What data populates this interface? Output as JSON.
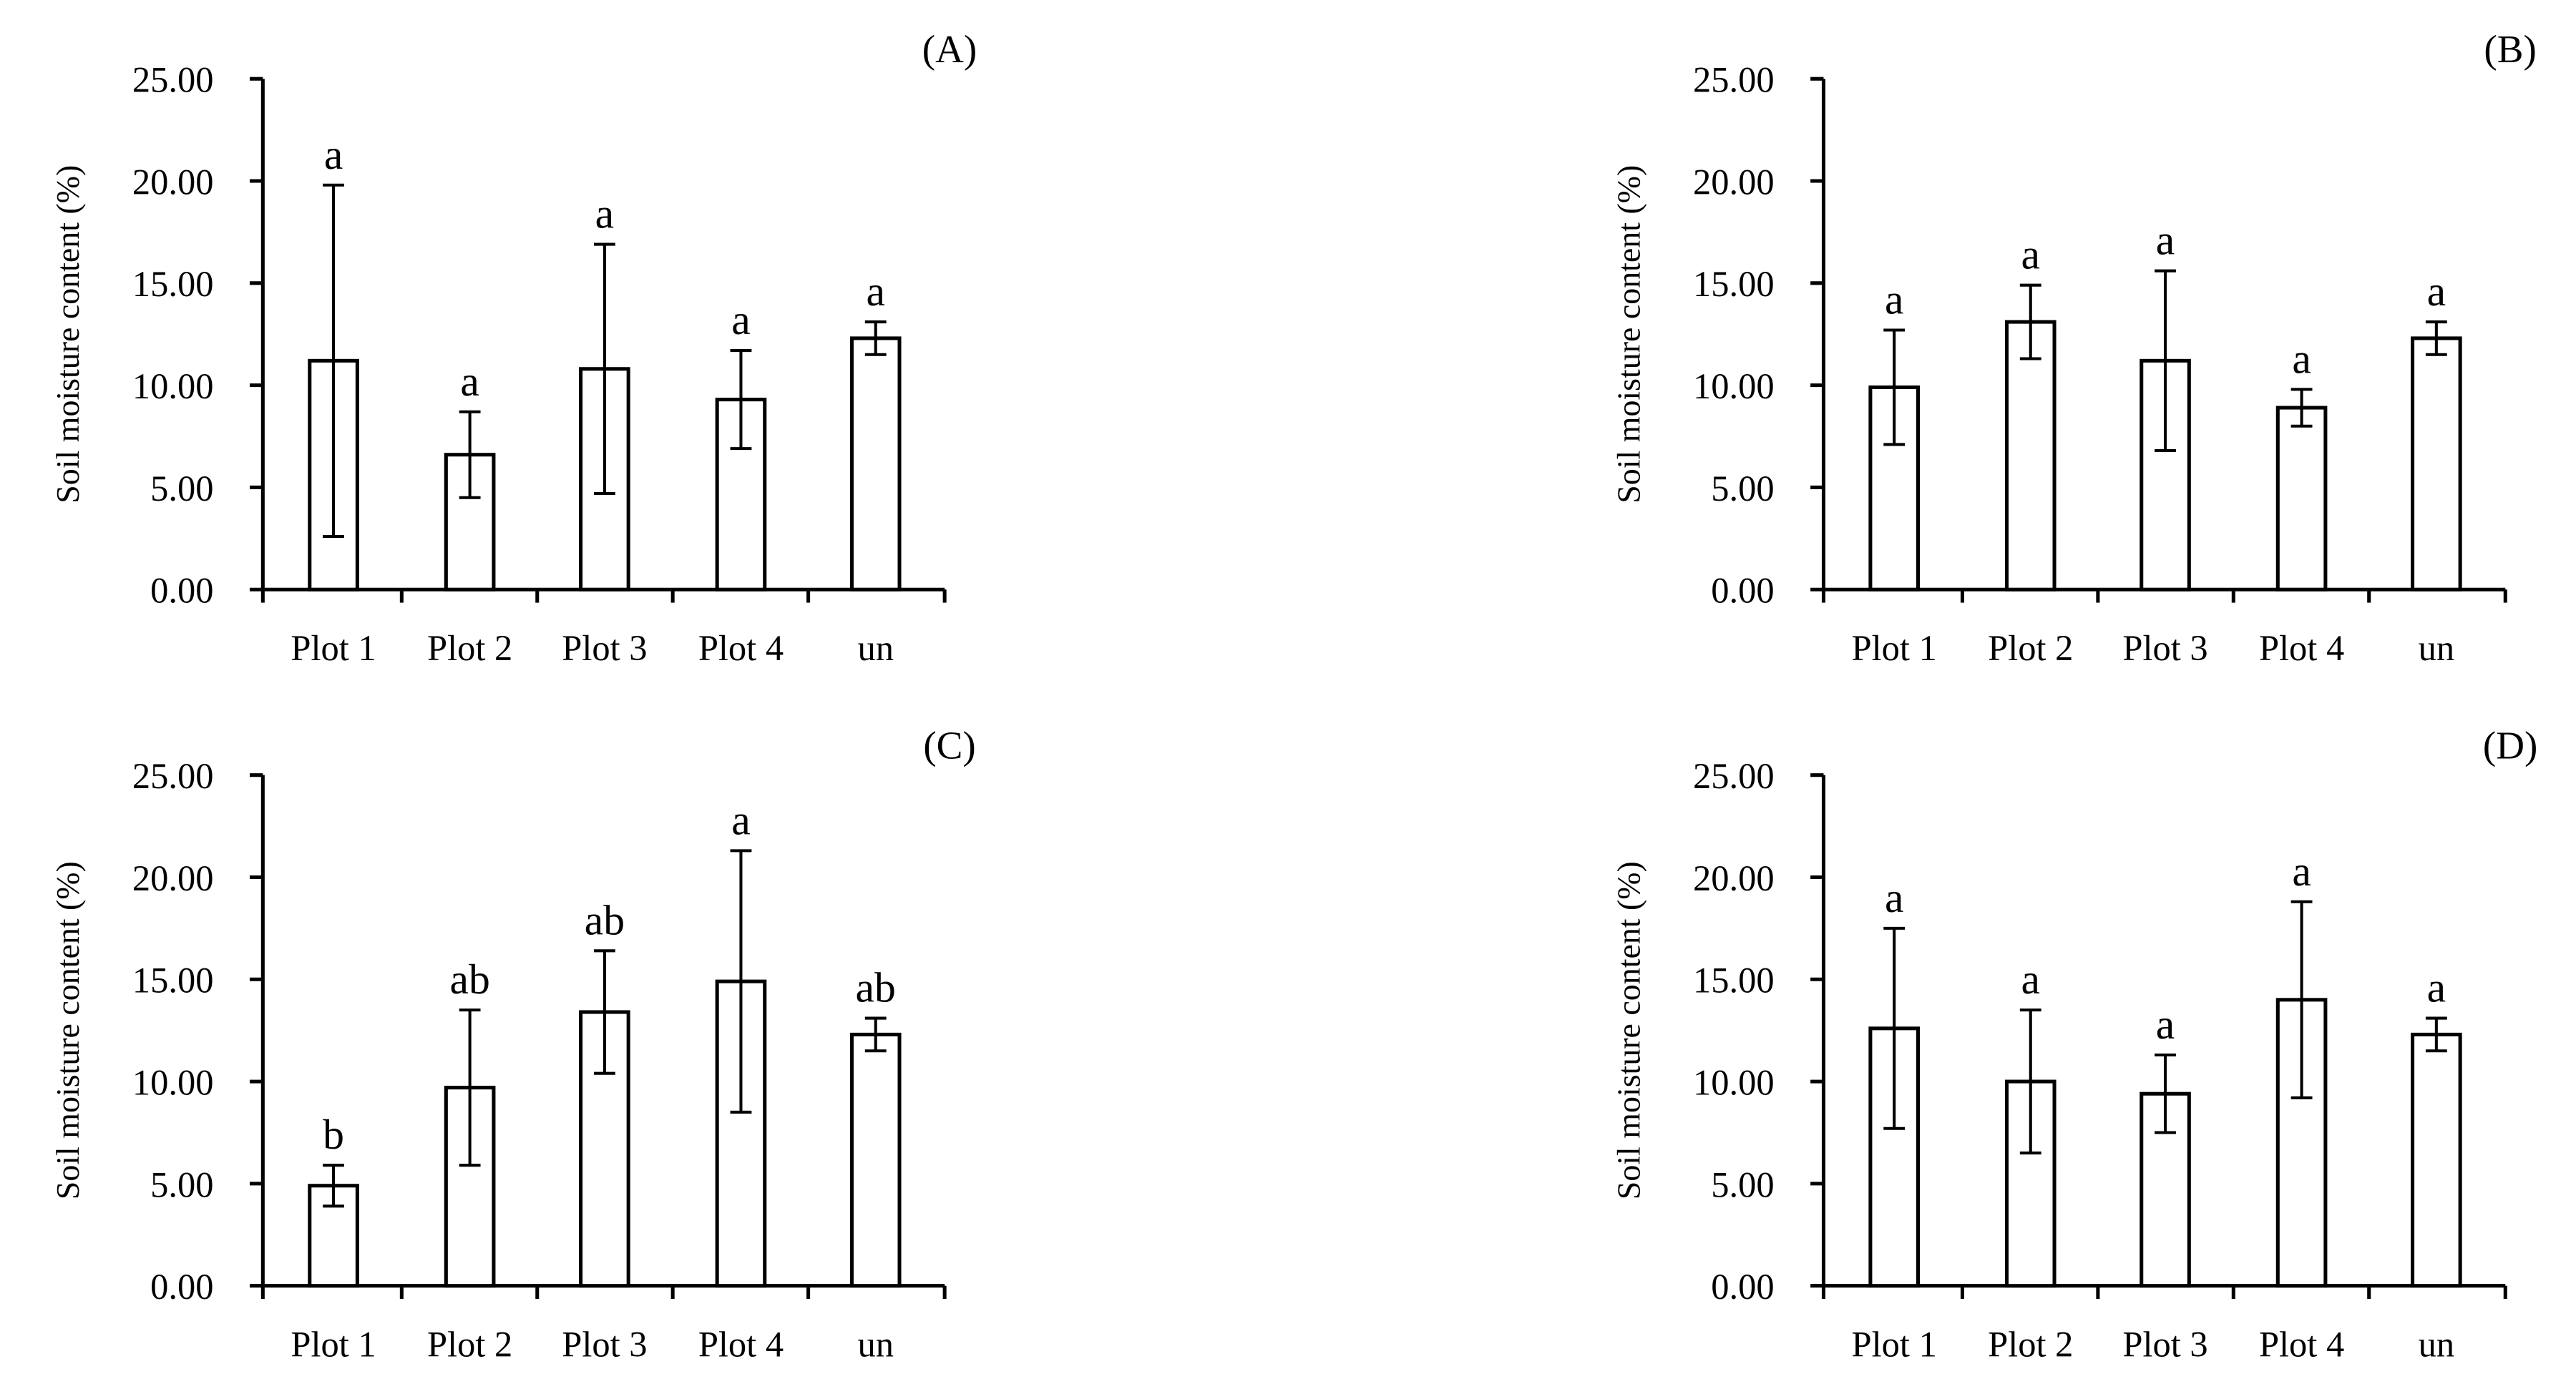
{
  "chart_data": [
    {
      "panel": "(A)",
      "type": "bar",
      "ylabel": "Soil moisture content (%)",
      "ylim": [
        0,
        25
      ],
      "yticks": [
        "0.00",
        "5.00",
        "10.00",
        "15.00",
        "20.00",
        "25.00"
      ],
      "categories": [
        "Plot 1",
        "Plot 2",
        "Plot 3",
        "Plot 4",
        "un"
      ],
      "values": [
        11.2,
        6.6,
        10.8,
        9.3,
        12.3
      ],
      "errors": [
        8.6,
        2.1,
        6.1,
        2.4,
        0.8
      ],
      "letters": [
        "a",
        "a",
        "a",
        "a",
        "a"
      ]
    },
    {
      "panel": "(B)",
      "type": "bar",
      "ylabel": "Soil moisture content (%)",
      "ylim": [
        0,
        25
      ],
      "yticks": [
        "0.00",
        "5.00",
        "10.00",
        "15.00",
        "20.00",
        "25.00"
      ],
      "categories": [
        "Plot 1",
        "Plot 2",
        "Plot 3",
        "Plot 4",
        "un"
      ],
      "values": [
        9.9,
        13.1,
        11.2,
        8.9,
        12.3
      ],
      "errors": [
        2.8,
        1.8,
        4.4,
        0.9,
        0.8
      ],
      "letters": [
        "a",
        "a",
        "a",
        "a",
        "a"
      ]
    },
    {
      "panel": "(C)",
      "type": "bar",
      "ylabel": "Soil moisture content (%)",
      "ylim": [
        0,
        25
      ],
      "yticks": [
        "0.00",
        "5.00",
        "10.00",
        "15.00",
        "20.00",
        "25.00"
      ],
      "categories": [
        "Plot 1",
        "Plot 2",
        "Plot 3",
        "Plot 4",
        "un"
      ],
      "values": [
        4.9,
        9.7,
        13.4,
        14.9,
        12.3
      ],
      "errors": [
        1.0,
        3.8,
        3.0,
        6.4,
        0.8
      ],
      "letters": [
        "b",
        "ab",
        "ab",
        "a",
        "ab"
      ]
    },
    {
      "panel": "(D)",
      "type": "bar",
      "ylabel": "Soil moisture content (%)",
      "ylim": [
        0,
        25
      ],
      "yticks": [
        "0.00",
        "5.00",
        "10.00",
        "15.00",
        "20.00",
        "25.00"
      ],
      "categories": [
        "Plot 1",
        "Plot 2",
        "Plot 3",
        "Plot 4",
        "un"
      ],
      "values": [
        12.6,
        10.0,
        9.4,
        14.0,
        12.3
      ],
      "errors": [
        4.9,
        3.5,
        1.9,
        4.8,
        0.8
      ],
      "letters": [
        "a",
        "a",
        "a",
        "a",
        "a"
      ]
    }
  ]
}
